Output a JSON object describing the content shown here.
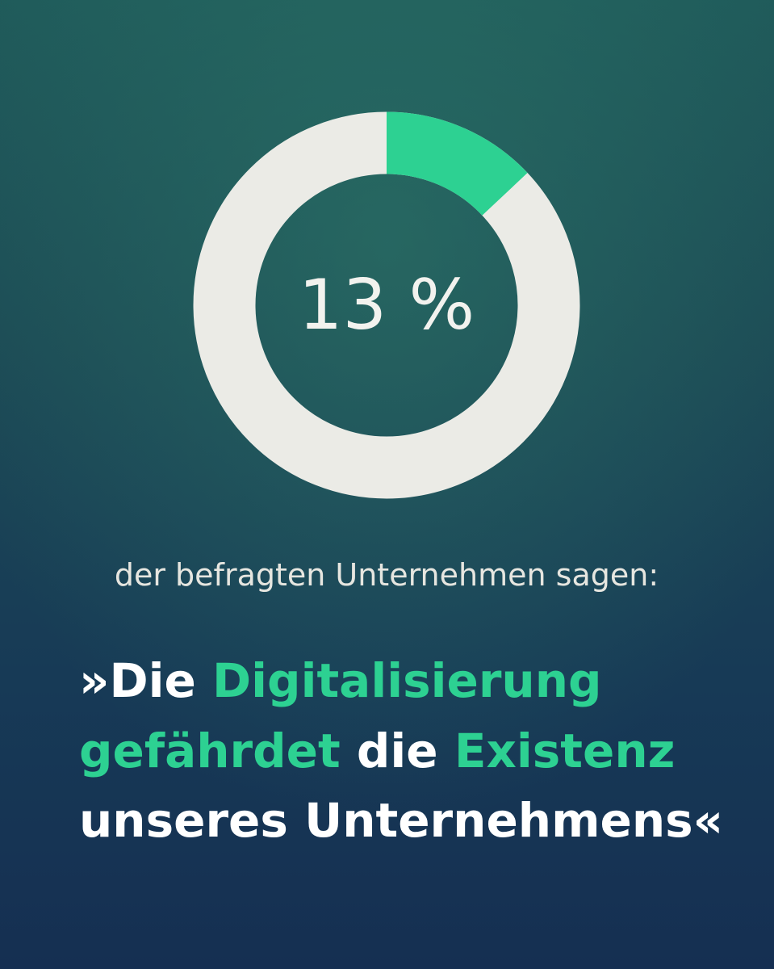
{
  "chart_data": {
    "type": "donut",
    "values": [
      13
    ],
    "value_labels": [
      "13 %"
    ],
    "color": "#2dd192",
    "track_color": "#ebebe6",
    "subtitle": "der befragten Unternehmen sagen:",
    "quote": [
      [
        {
          "text": "»Die ",
          "color": "#ffffff"
        },
        {
          "text": "Digitalisierung",
          "color": "#2dd192"
        }
      ],
      [
        {
          "text": "gefährdet",
          "color": "#2dd192"
        },
        {
          "text": " die ",
          "color": "#ffffff"
        },
        {
          "text": "Existenz",
          "color": "#2dd192"
        }
      ],
      [
        {
          "text": "unseres Unternehmens«",
          "color": "#ffffff"
        }
      ]
    ]
  }
}
